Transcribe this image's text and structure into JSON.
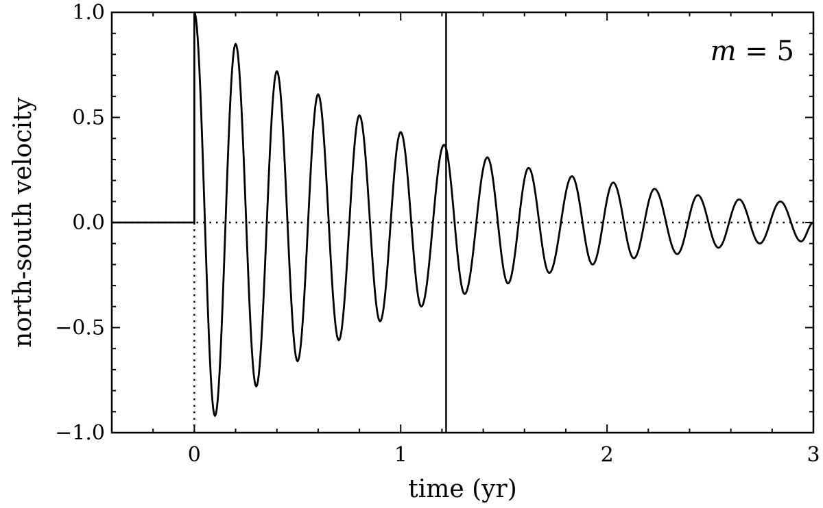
{
  "chart_data": {
    "type": "line",
    "title": "",
    "xlabel": "time (yr)",
    "ylabel": "north-south velocity",
    "xlim": [
      -0.4,
      3.0
    ],
    "ylim": [
      -1.0,
      1.0
    ],
    "xticks": [
      0,
      1,
      2,
      3
    ],
    "xtick_labels": [
      "0",
      "1",
      "2",
      "3"
    ],
    "yticks": [
      -1.0,
      -0.5,
      0.0,
      0.5,
      1.0
    ],
    "ytick_labels": [
      "−1.0",
      "−0.5",
      "0.0",
      "0.5",
      "1.0"
    ],
    "grid": false,
    "annotation": {
      "var": "m",
      "op": " = ",
      "value": "5"
    },
    "zero_line": {
      "y": 0.0,
      "style": "dotted"
    },
    "onset_line": {
      "x": 0.0,
      "style": "dotted"
    },
    "marker_line": {
      "x": 1.22,
      "style": "solid"
    },
    "series": [
      {
        "x": [
          -0.4,
          0.0,
          0.0,
          0.1,
          0.2,
          0.3,
          0.4,
          0.5,
          0.6,
          0.7,
          0.8,
          0.9,
          1.0,
          1.1,
          1.21,
          1.31,
          1.42,
          1.52,
          1.62,
          1.72,
          1.83,
          1.93,
          2.03,
          2.13,
          2.23,
          2.34,
          2.44,
          2.54,
          2.64,
          2.74,
          2.84,
          2.94,
          3.0
        ],
        "y": [
          0.0,
          0.0,
          1.0,
          -0.92,
          0.85,
          -0.78,
          0.72,
          -0.66,
          0.61,
          -0.56,
          0.51,
          -0.47,
          0.43,
          -0.4,
          0.37,
          -0.34,
          0.31,
          -0.29,
          0.26,
          -0.24,
          0.22,
          -0.2,
          0.19,
          -0.17,
          0.16,
          -0.15,
          0.13,
          -0.12,
          0.11,
          -0.1,
          0.1,
          -0.09,
          0.0
        ]
      }
    ]
  }
}
